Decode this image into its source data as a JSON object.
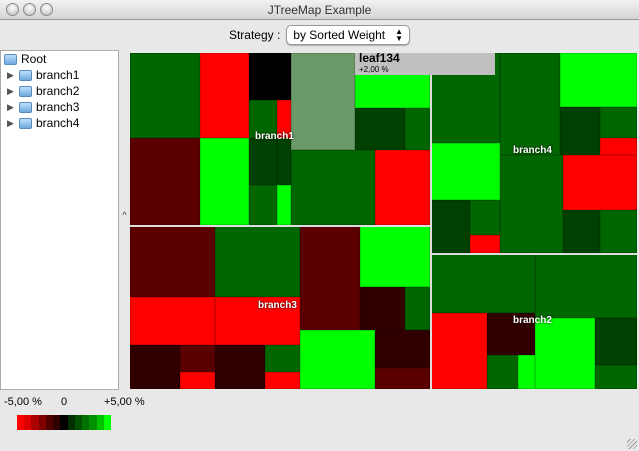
{
  "window": {
    "title": "JTreeMap Example"
  },
  "toolbar": {
    "strategy_label": "Strategy :",
    "strategy_value": "by Sorted Weight"
  },
  "tree": {
    "root": "Root",
    "items": [
      {
        "label": "branch1"
      },
      {
        "label": "branch2"
      },
      {
        "label": "branch3"
      },
      {
        "label": "branch4"
      }
    ]
  },
  "treemap": {
    "branch_labels": {
      "branch1": "branch1",
      "branch2": "branch2",
      "branch3": "branch3",
      "branch4": "branch4"
    },
    "tooltip": {
      "name": "leaf134",
      "value": "+2,00 %"
    },
    "colors": {
      "red": "#ff0000",
      "dred": "#5a0000",
      "vdred": "#300000",
      "black": "#000000",
      "green": "#006600",
      "dgreen": "#004000",
      "bgreen": "#00ff00",
      "hl": "#6a9a6a"
    }
  },
  "legend": {
    "min": "-5,00 %",
    "zero": "0",
    "max": "+5,00 %",
    "scale": [
      "#ff0000",
      "#dd0000",
      "#aa0000",
      "#800000",
      "#500000",
      "#300000",
      "#000000",
      "#003000",
      "#005000",
      "#007000",
      "#009000",
      "#00c000",
      "#00ff00"
    ]
  }
}
